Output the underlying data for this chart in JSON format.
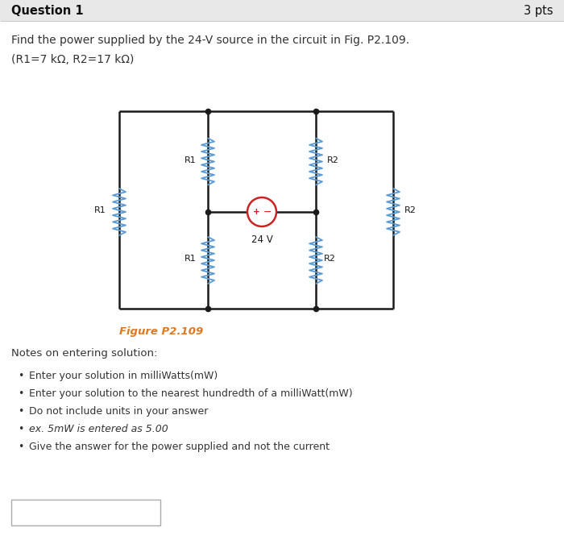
{
  "title": "Question 1",
  "pts": "3 pts",
  "question_text": "Find the power supplied by the 24-V source in the circuit in Fig. P2.109.",
  "params_text": "(R1=7 kΩ, R2=17 kΩ)",
  "figure_label": "Figure P2.109",
  "notes_header": "Notes on entering solution:",
  "bullet_points": [
    "Enter your solution in milliWatts(mW)",
    "Enter your solution to the nearest hundredth of a milliWatt(mW)",
    "Do not include units in your answer",
    "ex. 5mW is entered as 5.00",
    "Give the answer for the power supplied and not the current"
  ],
  "bg_color": "#ffffff",
  "header_bg": "#e8e8e8",
  "circuit_line_color": "#1a1a1a",
  "resistor_color_blue": "#5b9bd5",
  "source_color_red": "#cc2222",
  "figure_label_color": "#e07820",
  "text_color": "#333333",
  "header_line_color": "#cccccc"
}
